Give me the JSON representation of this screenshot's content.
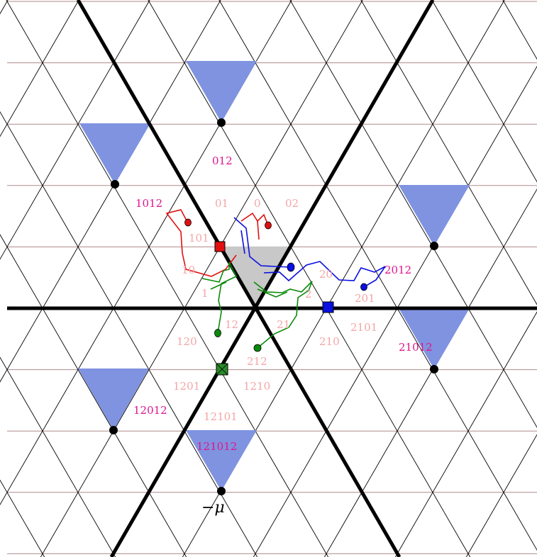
{
  "colors": {
    "grid_line": "#000000",
    "horizontal_line": "#b08a8a",
    "wall": "#000000",
    "alcove": "#7f93e0",
    "fundamental": "#c8c8c8",
    "red_path": "#e01010",
    "green_path": "#0a8a0a",
    "blue_path": "#0a10e0",
    "light_label": "#f4a6a6",
    "magenta_label": "#e0158c"
  },
  "light_labels": {
    "l_01": "01",
    "l_0": "0",
    "l_02": "02",
    "l_101": "101",
    "l_10": "10",
    "l_1": "1",
    "l_20": "20",
    "l_2": "2",
    "l_201": "201",
    "l_12": "12",
    "l_21": "21",
    "l_120": "120",
    "l_210": "210",
    "l_2101": "2101",
    "l_212": "212",
    "l_1201": "1201",
    "l_1210": "1210",
    "l_12101": "12101"
  },
  "magenta_labels": {
    "m_012": "012",
    "m_1012": "1012",
    "m_2012": "2012",
    "m_21012": "21012",
    "m_12012": "12012",
    "m_121012": "121012"
  },
  "mu_label": "−μ"
}
